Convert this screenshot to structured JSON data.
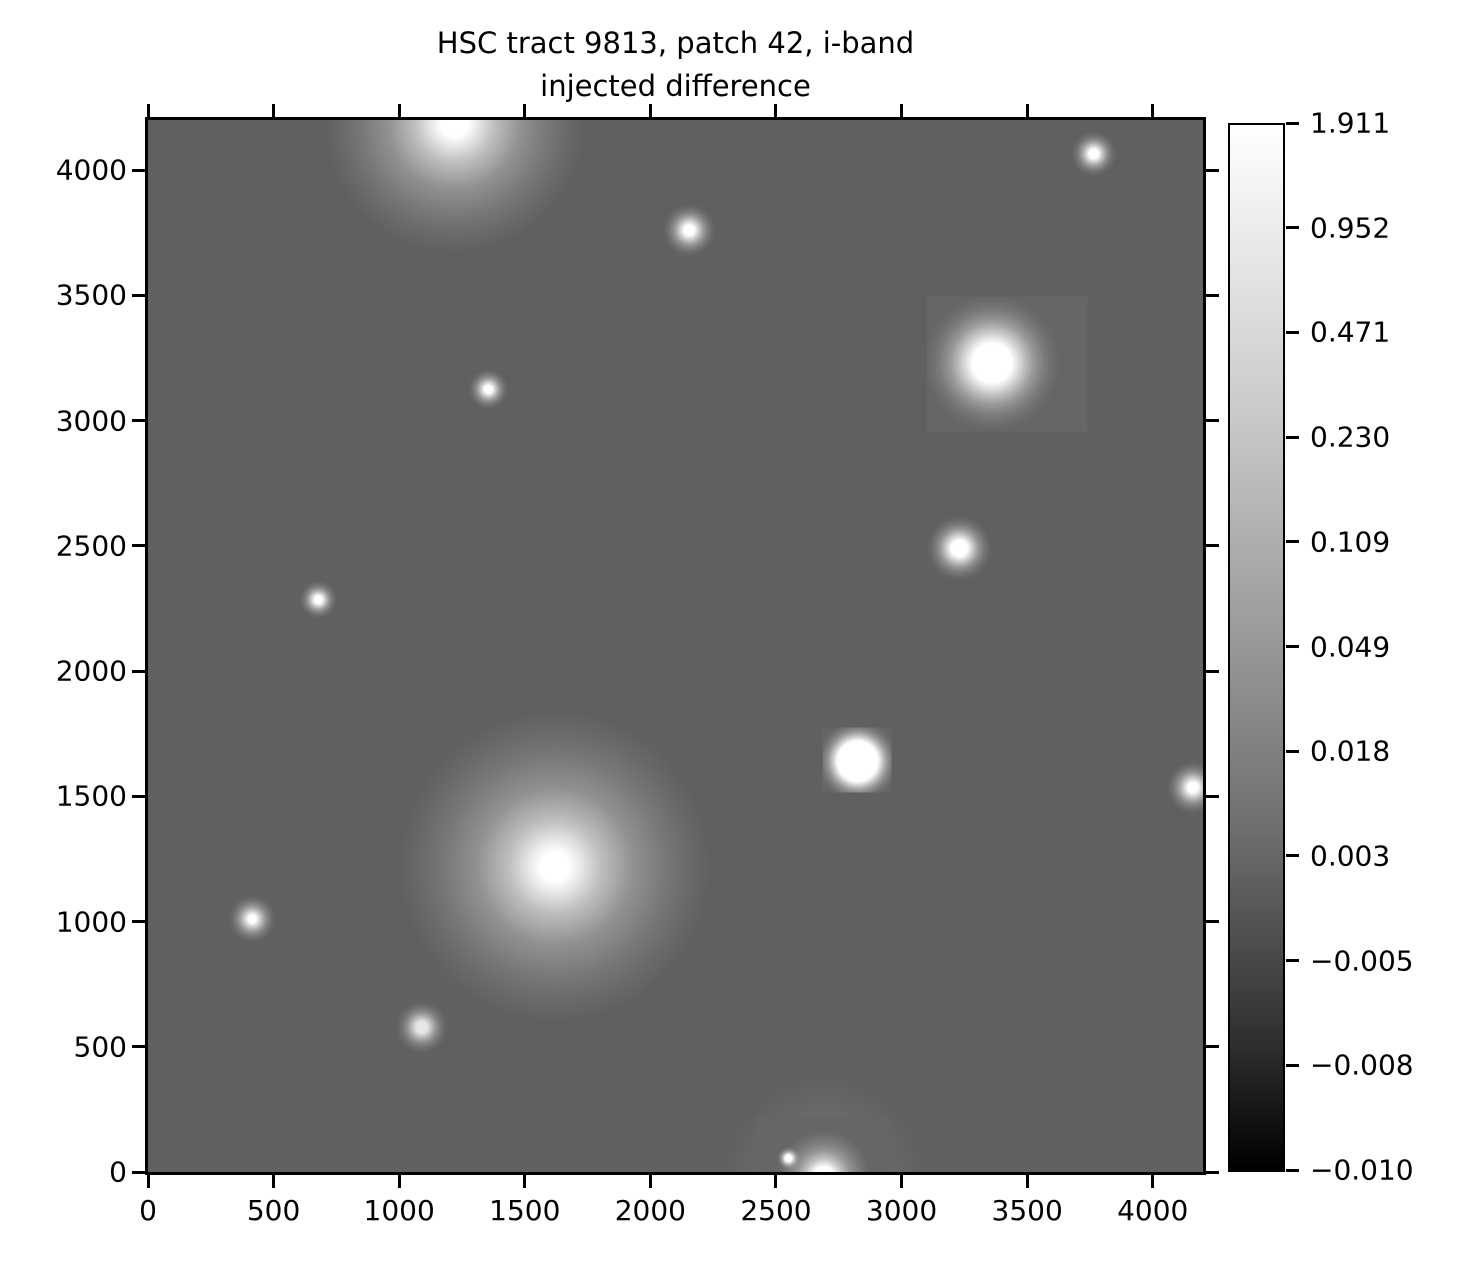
{
  "figure": {
    "title_line1": "HSC tract 9813, patch 42, i-band",
    "title_line2": "injected difference",
    "background_color": "#ffffff",
    "text_color": "#000000"
  },
  "chart_data": {
    "type": "heatmap",
    "title": "HSC tract 9813, patch 42, i-band\ninjected difference",
    "xlabel": "",
    "ylabel": "",
    "xlim": [
      0,
      4200
    ],
    "ylim": [
      0,
      4200
    ],
    "x_ticks": [
      0,
      500,
      1000,
      1500,
      2000,
      2500,
      3000,
      3500,
      4000
    ],
    "y_ticks": [
      0,
      500,
      1000,
      1500,
      2000,
      2500,
      3000,
      3500,
      4000
    ],
    "grid": false,
    "legend": "none",
    "colormap": "grayscale, white = bright",
    "image_background_color": "#606060",
    "stamp_background_color": "#666666",
    "source_color": "#ffffff",
    "colorbar": {
      "position": "right",
      "tick_labels": [
        "1.911",
        "0.952",
        "0.471",
        "0.230",
        "0.109",
        "0.049",
        "0.018",
        "0.003",
        "−0.005",
        "−0.008",
        "−0.010"
      ],
      "vmax": 1.911,
      "vmin": -0.01,
      "gradient_top": "#ffffff",
      "gradient_bottom": "#000000"
    },
    "sources": [
      {
        "x": 1220,
        "y": 4190,
        "core_r": 55,
        "halo_r": 520,
        "kind": "galaxy"
      },
      {
        "x": 2155,
        "y": 3760,
        "core_r": 20,
        "halo_r": 105,
        "kind": "star"
      },
      {
        "x": 3765,
        "y": 4065,
        "core_r": 18,
        "halo_r": 90,
        "kind": "star"
      },
      {
        "x": 3360,
        "y": 3230,
        "core_r": 78,
        "halo_r": 270,
        "kind": "star",
        "stamp": [
          3100,
          2955,
          3740,
          3495
        ]
      },
      {
        "x": 1355,
        "y": 3125,
        "core_r": 15,
        "halo_r": 80,
        "kind": "star"
      },
      {
        "x": 3230,
        "y": 2490,
        "core_r": 32,
        "halo_r": 130,
        "kind": "star"
      },
      {
        "x": 678,
        "y": 2285,
        "core_r": 15,
        "halo_r": 75,
        "kind": "star"
      },
      {
        "x": 2825,
        "y": 1640,
        "core_r": 80,
        "halo_r": 160,
        "kind": "star",
        "stamp": [
          2685,
          1515,
          2960,
          1775
        ]
      },
      {
        "x": 4160,
        "y": 1535,
        "core_r": 20,
        "halo_r": 105,
        "kind": "star"
      },
      {
        "x": 1620,
        "y": 1220,
        "core_r": 58,
        "halo_r": 620,
        "kind": "galaxy"
      },
      {
        "x": 415,
        "y": 1010,
        "core_r": 15,
        "halo_r": 95,
        "kind": "star"
      },
      {
        "x": 1090,
        "y": 578,
        "core_r": 22,
        "halo_r": 105,
        "kind": "star",
        "dim": true
      },
      {
        "x": 2690,
        "y": -20,
        "core_r": 40,
        "halo_r": 185,
        "kind": "galaxy",
        "stamp": [
          2420,
          0,
          2950,
          220
        ],
        "extra_halo_r": 400
      },
      {
        "x": 2550,
        "y": 55,
        "core_r": 13,
        "halo_r": 45,
        "kind": "star"
      }
    ]
  }
}
